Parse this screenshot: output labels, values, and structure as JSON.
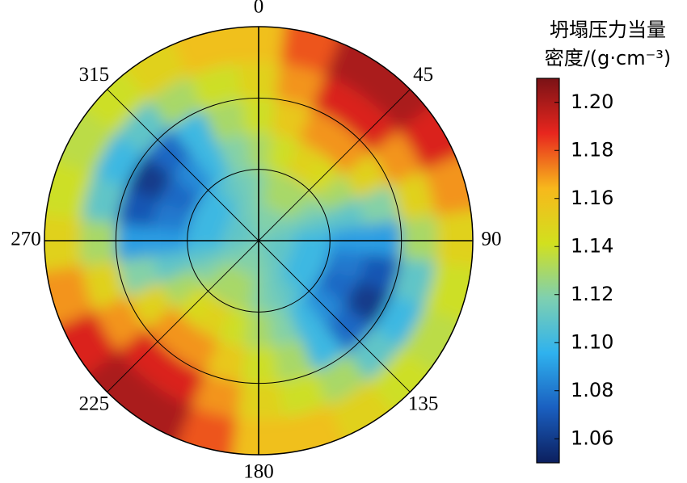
{
  "chart_data": {
    "type": "polar-heatmap",
    "theta": [
      0,
      15,
      30,
      45,
      60,
      75,
      90,
      105,
      120,
      135,
      150,
      165,
      180,
      195,
      210,
      225,
      240,
      255,
      270,
      285,
      300,
      315,
      330,
      345
    ],
    "r_edges": [
      0,
      0.5,
      1,
      1.5,
      2,
      2.5,
      3
    ],
    "values": [
      [
        1.12,
        1.12,
        1.12,
        1.12,
        1.115,
        1.115,
        1.11,
        1.11,
        1.11,
        1.11,
        1.115,
        1.115,
        1.12,
        1.12,
        1.12,
        1.12,
        1.115,
        1.115,
        1.11,
        1.11,
        1.11,
        1.11,
        1.115,
        1.115
      ],
      [
        1.12,
        1.13,
        1.13,
        1.13,
        1.12,
        1.11,
        1.1,
        1.1,
        1.1,
        1.1,
        1.11,
        1.115,
        1.12,
        1.13,
        1.13,
        1.13,
        1.12,
        1.11,
        1.1,
        1.1,
        1.1,
        1.1,
        1.11,
        1.115
      ],
      [
        1.13,
        1.14,
        1.15,
        1.145,
        1.13,
        1.11,
        1.09,
        1.08,
        1.075,
        1.085,
        1.1,
        1.12,
        1.13,
        1.14,
        1.15,
        1.145,
        1.13,
        1.11,
        1.09,
        1.08,
        1.075,
        1.085,
        1.1,
        1.12
      ],
      [
        1.14,
        1.155,
        1.17,
        1.17,
        1.15,
        1.12,
        1.09,
        1.07,
        1.06,
        1.075,
        1.1,
        1.13,
        1.14,
        1.155,
        1.17,
        1.17,
        1.15,
        1.12,
        1.09,
        1.07,
        1.06,
        1.075,
        1.1,
        1.13
      ],
      [
        1.15,
        1.17,
        1.19,
        1.19,
        1.17,
        1.15,
        1.13,
        1.11,
        1.1,
        1.11,
        1.13,
        1.14,
        1.15,
        1.17,
        1.19,
        1.19,
        1.17,
        1.15,
        1.13,
        1.11,
        1.1,
        1.11,
        1.13,
        1.14
      ],
      [
        1.16,
        1.18,
        1.2,
        1.2,
        1.19,
        1.17,
        1.15,
        1.14,
        1.135,
        1.14,
        1.15,
        1.16,
        1.16,
        1.18,
        1.2,
        1.2,
        1.19,
        1.17,
        1.15,
        1.14,
        1.135,
        1.14,
        1.15,
        1.16
      ]
    ],
    "thetaticks": [
      0,
      45,
      90,
      135,
      180,
      225,
      270,
      315
    ],
    "rlim": [
      0,
      3
    ],
    "rgrid": [
      1,
      2
    ],
    "colormap": [
      "#0c1f5e",
      "#1a5fc0",
      "#2fb2ee",
      "#7fd0b0",
      "#d2e01e",
      "#f7b81c",
      "#e8261e",
      "#7a1216"
    ],
    "colorbar": {
      "label": [
        "坍塌压力当量",
        "密度/(g·cm⁻³)"
      ],
      "lim": [
        1.05,
        1.21
      ],
      "ticks": [
        1.06,
        1.08,
        {
          "value": 1.1,
          "label": "1.10"
        },
        1.12,
        1.14,
        1.16,
        1.18,
        {
          "value": 1.2,
          "label": "1.20"
        }
      ]
    }
  }
}
